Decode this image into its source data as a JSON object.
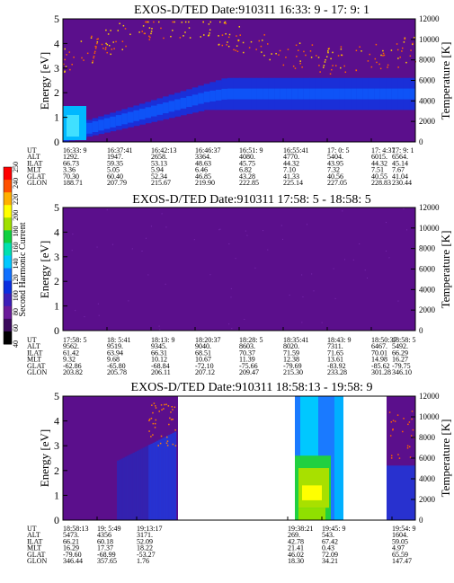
{
  "chart_data": [
    {
      "type": "heatmap",
      "title": "EXOS-D/TED   Date:910311  16:33: 9 - 17: 9: 1",
      "ylabel": "Energy [eV]",
      "y2label": "Temperature [K]",
      "ylim": [
        0,
        5
      ],
      "yticks": [
        "0",
        "1",
        "2",
        "3",
        "4",
        "5"
      ],
      "y2lim": [
        0,
        12000
      ],
      "y2ticks": [
        "0",
        "2000",
        "4000",
        "6000",
        "8000",
        "10000",
        "12000"
      ],
      "background": "#5b0f8c",
      "row_labels": [
        "UT",
        "ALT",
        "ILAT",
        "MLT",
        "GLAT",
        "GLON"
      ],
      "columns": [
        [
          "16:33: 9",
          "1292.",
          "66.73",
          "3.36",
          "70.30",
          "188.71"
        ],
        [
          "16:37:41",
          "1947.",
          "59.35",
          "5.05",
          "60.40",
          "207.79"
        ],
        [
          "16:42:13",
          "2658.",
          "53.13",
          "5.94",
          "52.34",
          "215.67"
        ],
        [
          "16:46:37",
          "3364.",
          "48.63",
          "6.46",
          "46.85",
          "219.90"
        ],
        [
          "16:51: 9",
          "4080.",
          "45.75",
          "6.82",
          "43.28",
          "222.85"
        ],
        [
          "16:55:41",
          "4770.",
          "44.32",
          "7.10",
          "41.33",
          "225.14"
        ],
        [
          "17: 0: 5",
          "5404.",
          "43.95",
          "7.32",
          "40.56",
          "227.05"
        ],
        [
          "17: 4:37",
          "6015.",
          "44.32",
          "7.51",
          "40.55",
          "228.83"
        ],
        [
          "17: 9: 1",
          "6564.",
          "45.14",
          "7.67",
          "41.04",
          "230.44"
        ]
      ]
    },
    {
      "type": "heatmap",
      "title": "EXOS-D/TED   Date:910311  17:58: 5 - 18:58: 5",
      "ylabel": "Energy [eV]",
      "y2label": "Temperature [K]",
      "ylim": [
        0,
        5
      ],
      "yticks": [
        "0",
        "1",
        "2",
        "3",
        "4",
        "5"
      ],
      "y2lim": [
        0,
        12000
      ],
      "y2ticks": [
        "0",
        "2000",
        "4000",
        "6000",
        "8000",
        "10000",
        "12000"
      ],
      "background": "#5b0f8c",
      "row_labels": [
        "UT",
        "ALT",
        "ILAT",
        "MLT",
        "GLAT",
        "GLON"
      ],
      "columns": [
        [
          "17:58: 5",
          "9562.",
          "61.42",
          "9.32",
          "-62.86",
          "203.82"
        ],
        [
          "18: 5:41",
          "9519.",
          "63.94",
          "9.68",
          "-65.80",
          "205.78"
        ],
        [
          "18:13: 9",
          "9345.",
          "66.31",
          "10.12",
          "-68.84",
          "206.11"
        ],
        [
          "18:20:37",
          "9040.",
          "68.51",
          "10.67",
          "-72.10",
          "207.12"
        ],
        [
          "18:28: 5",
          "8603.",
          "70.37",
          "11.39",
          "-75.66",
          "209.47"
        ],
        [
          "18:35:41",
          "8020.",
          "71.59",
          "12.38",
          "-79.69",
          "215.30"
        ],
        [
          "18:43: 9",
          "7311.",
          "71.65",
          "13.61",
          "-83.92",
          "233.28"
        ],
        [
          "18:50:37",
          "6467.",
          "70.01",
          "14.98",
          "-85.62",
          "301.28"
        ],
        [
          "18:58: 5",
          "5492.",
          "66.29",
          "16.27",
          "-79.75",
          "346.10"
        ]
      ]
    },
    {
      "type": "heatmap",
      "title": "EXOS-D/TED   Date:910311  18:58:13 - 19:58: 9",
      "ylabel": "Energy [eV]",
      "y2label": "Temperature [K]",
      "ylim": [
        0,
        5
      ],
      "yticks": [
        "0",
        "1",
        "2",
        "3",
        "4",
        "5"
      ],
      "y2lim": [
        0,
        12000
      ],
      "y2ticks": [
        "0",
        "2000",
        "4000",
        "6000",
        "8000",
        "10000",
        "12000"
      ],
      "background": "#5b0f8c",
      "row_labels": [
        "UT",
        "ALT",
        "ILAT",
        "MLT",
        "GLAT",
        "GLON"
      ],
      "columns": [
        [
          "18:58:13",
          "5473.",
          "66.21",
          "16.29",
          "-79.60",
          "346.44"
        ],
        [
          "19: 5:49",
          "4356",
          "60.18",
          "17.37",
          "-68.99",
          "357.65"
        ],
        [
          "19:13:17",
          "3171.",
          "52.09",
          "18.22",
          "-53.27",
          "1.76"
        ],
        [
          "19:38:21",
          "269.",
          "42.78",
          "21.41",
          "46.02",
          "18.30"
        ],
        [
          "19:45: 9",
          "543.",
          "67.42",
          "0.43",
          "72.09",
          "34.21"
        ],
        [
          "19:54: 9",
          "1604.",
          "59.05",
          "4.97",
          "65.59",
          "147.47"
        ]
      ]
    }
  ],
  "colorbar": {
    "label": "Second Harmonic Current",
    "ticks": [
      "40",
      "60",
      "80",
      "100",
      "120",
      "140",
      "160",
      "180",
      "200",
      "220",
      "240",
      "250"
    ],
    "colors": [
      "#000000",
      "#3a0a5c",
      "#6a1b9a",
      "#3c1fb8",
      "#0a2fe0",
      "#1070ff",
      "#00c8ff",
      "#00e0b0",
      "#10d040",
      "#a0e000",
      "#ffff00",
      "#ffb000",
      "#ff5000",
      "#ff0000"
    ]
  }
}
